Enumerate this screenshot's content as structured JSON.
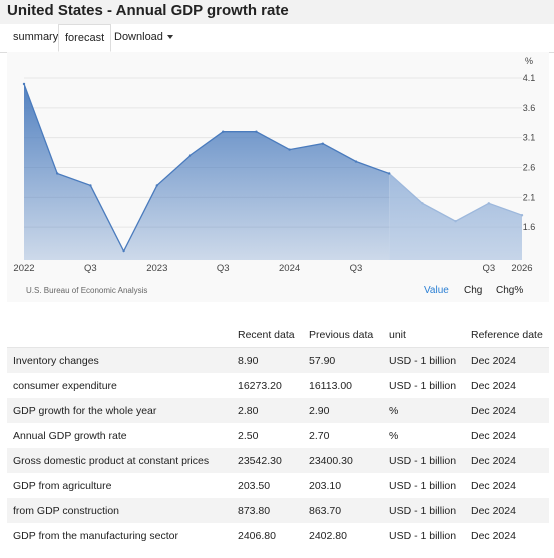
{
  "page": {
    "title": "United States - Annual GDP growth rate"
  },
  "tabs": {
    "summary": "summary",
    "forecast": "forecast",
    "download": "Download"
  },
  "chart_data": {
    "type": "area",
    "unit_label": "%",
    "x": [
      "2022 Q1",
      "2022 Q2",
      "2022 Q3",
      "2022 Q4",
      "2023 Q1",
      "2023 Q2",
      "2023 Q3",
      "2023 Q4",
      "2024 Q1",
      "2024 Q2",
      "2024 Q3",
      "2024 Q4",
      "2025 Q1",
      "2025 Q2",
      "2025 Q3",
      "2025 Q4"
    ],
    "series": [
      {
        "values": [
          4.0,
          2.5,
          2.3,
          1.2,
          2.3,
          2.8,
          3.2,
          3.2,
          2.9,
          3.0,
          2.7,
          2.5,
          2.0,
          1.7,
          2.0,
          1.8
        ]
      }
    ],
    "forecast_start_index": 11,
    "x_tick_labels": [
      "2022",
      "Q3",
      "2023",
      "Q3",
      "2024",
      "Q3",
      "Q3",
      "2026"
    ],
    "y_ticks": [
      1.6,
      2.1,
      2.6,
      3.1,
      3.6,
      4.1
    ],
    "ylim": [
      1.05,
      4.1
    ],
    "y_axis_side": "right",
    "source": "U.S. Bureau of Economic Analysis",
    "modes": [
      "Value",
      "Chg",
      "Chg%"
    ],
    "colors": {
      "actual": "#4a7bbd",
      "forecast": "#9db8dc",
      "active_mode": "#2a7fd4"
    }
  },
  "table": {
    "headers": [
      "",
      "Recent data",
      "Previous data",
      "unit",
      "Reference date"
    ],
    "rows": [
      [
        "Inventory changes",
        "8.90",
        "57.90",
        "USD - 1 billion",
        "Dec 2024"
      ],
      [
        "consumer expenditure",
        "16273.20",
        "16113.00",
        "USD - 1 billion",
        "Dec 2024"
      ],
      [
        "GDP growth for the whole year",
        "2.80",
        "2.90",
        "%",
        "Dec 2024"
      ],
      [
        "Annual GDP growth rate",
        "2.50",
        "2.70",
        "%",
        "Dec 2024"
      ],
      [
        "Gross domestic product at constant prices",
        "23542.30",
        "23400.30",
        "USD - 1 billion",
        "Dec 2024"
      ],
      [
        "GDP from agriculture",
        "203.50",
        "203.10",
        "USD - 1 billion",
        "Dec 2024"
      ],
      [
        "from GDP construction",
        "873.80",
        "863.70",
        "USD - 1 billion",
        "Dec 2024"
      ],
      [
        "GDP from the manufacturing sector",
        "2406.80",
        "2402.80",
        "USD - 1 billion",
        "Dec 2024"
      ]
    ]
  }
}
